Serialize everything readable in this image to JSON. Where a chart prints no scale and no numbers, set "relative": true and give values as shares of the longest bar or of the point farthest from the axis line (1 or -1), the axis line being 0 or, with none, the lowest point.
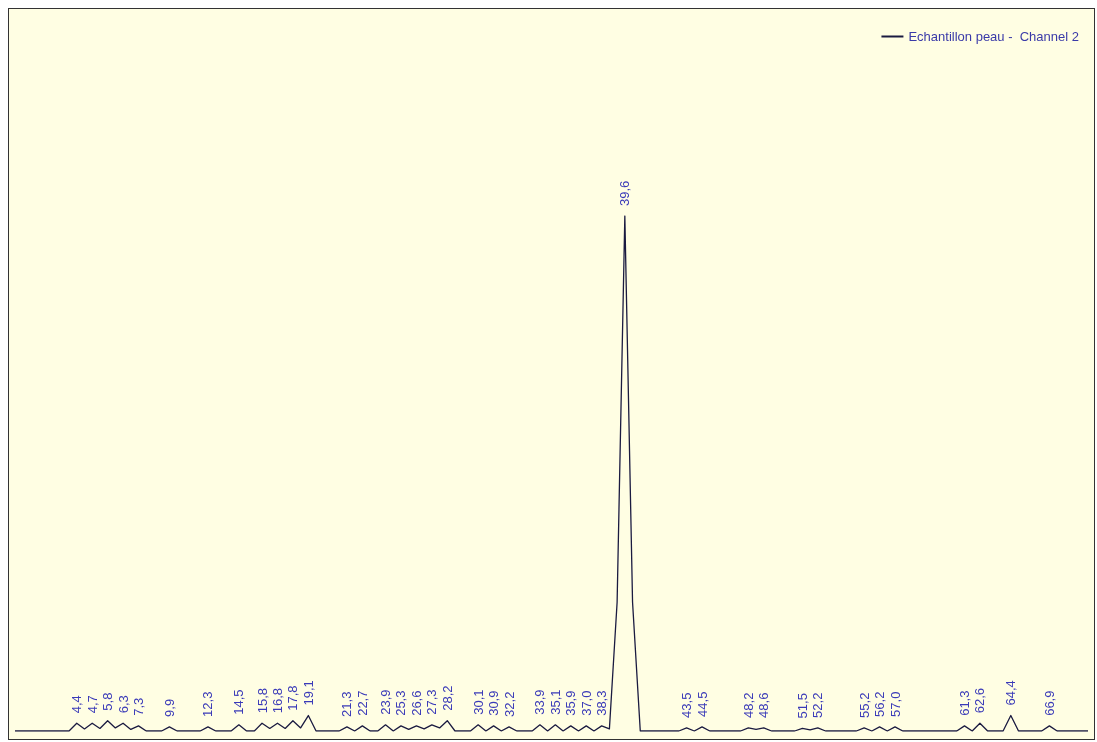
{
  "chart_data": {
    "type": "line",
    "relative": true,
    "legend": "top right",
    "marker": "none",
    "line_style": "solid",
    "categories": [
      null,
      null,
      null,
      null,
      null,
      null,
      null,
      null,
      null,
      null,
      null,
      null,
      null,
      null,
      null,
      null,
      null,
      null,
      null,
      null,
      null,
      null,
      null,
      null,
      null,
      null,
      null,
      null,
      null,
      null,
      null,
      null,
      null,
      null,
      null,
      null,
      null,
      null,
      null,
      null,
      null,
      null,
      null,
      null,
      null,
      null,
      null,
      null,
      null,
      null,
      null,
      null,
      null,
      null,
      null,
      null,
      null,
      null,
      null,
      null,
      null,
      null,
      null,
      null,
      null,
      null,
      null,
      null,
      null,
      null,
      null,
      null,
      null,
      null,
      null,
      null,
      null,
      null,
      null,
      null,
      null,
      null,
      null,
      null,
      null,
      null,
      null,
      null,
      null,
      null,
      null,
      null,
      null,
      null,
      null,
      null,
      null,
      null,
      null,
      null,
      null,
      null,
      null,
      null,
      null,
      null,
      null,
      null,
      null,
      null,
      null,
      null,
      null,
      null,
      null,
      null,
      null,
      null,
      null,
      null,
      null,
      null,
      null,
      null,
      null,
      null,
      null,
      null,
      null,
      null,
      null,
      null,
      null,
      null,
      null,
      null,
      null,
      null,
      null,
      null
    ],
    "series": [
      {
        "name": "Echantillon peau -  Channel 2",
        "color": "#1a1a40",
        "values": [
          0,
          0,
          0,
          0,
          0,
          0,
          0,
          0,
          0.015,
          0.004,
          0.015,
          0.005,
          0.02,
          0.006,
          0.015,
          0.003,
          0.01,
          0,
          0,
          0,
          0.008,
          0,
          0,
          0,
          0,
          0.008,
          0,
          0,
          0,
          0.012,
          0,
          0,
          0.015,
          0.005,
          0.015,
          0.005,
          0.02,
          0.006,
          0.03,
          0,
          0,
          0,
          0,
          0.008,
          0,
          0.01,
          0,
          0,
          0.012,
          0,
          0.01,
          0.003,
          0.01,
          0.004,
          0.012,
          0.006,
          0.02,
          0,
          0,
          0,
          0.012,
          0,
          0.01,
          0,
          0.008,
          0,
          0,
          0,
          0.012,
          0,
          0.012,
          0,
          0.01,
          0,
          0.01,
          0,
          0.01,
          0.004,
          0.25,
          1,
          0.25,
          0,
          0,
          0,
          0,
          0,
          0,
          0.006,
          0,
          0.008,
          0,
          0,
          0,
          0,
          0,
          0.006,
          0.003,
          0.006,
          0,
          0,
          0,
          0,
          0.005,
          0.002,
          0.006,
          0,
          0,
          0,
          0,
          0,
          0.006,
          0,
          0.008,
          0,
          0.008,
          0,
          0,
          0,
          0,
          0,
          0,
          0,
          0,
          0.01,
          0,
          0.015,
          0,
          0,
          0,
          0.03,
          0,
          0,
          0,
          0,
          0.01,
          0,
          0,
          0,
          0,
          0
        ]
      }
    ],
    "annotations": [
      "4,4",
      "4,7",
      "5,8",
      "6,3",
      "7,3",
      "9,9",
      "12,3",
      "14,5",
      "15,8",
      "16,8",
      "17,8",
      "19,1",
      "21,3",
      "22,7",
      "23,9",
      "25,3",
      "26,6",
      "27,3",
      "28,2",
      "30,1",
      "30,9",
      "32,2",
      "33,9",
      "35,1",
      "35,9",
      "37,0",
      "38,3",
      "39,6",
      "43,5",
      "44,5",
      "48,2",
      "48,6",
      "51,5",
      "52,2",
      "55,2",
      "56,2",
      "57,0",
      "61,3",
      "62,6",
      "64,4",
      "66,9"
    ]
  }
}
